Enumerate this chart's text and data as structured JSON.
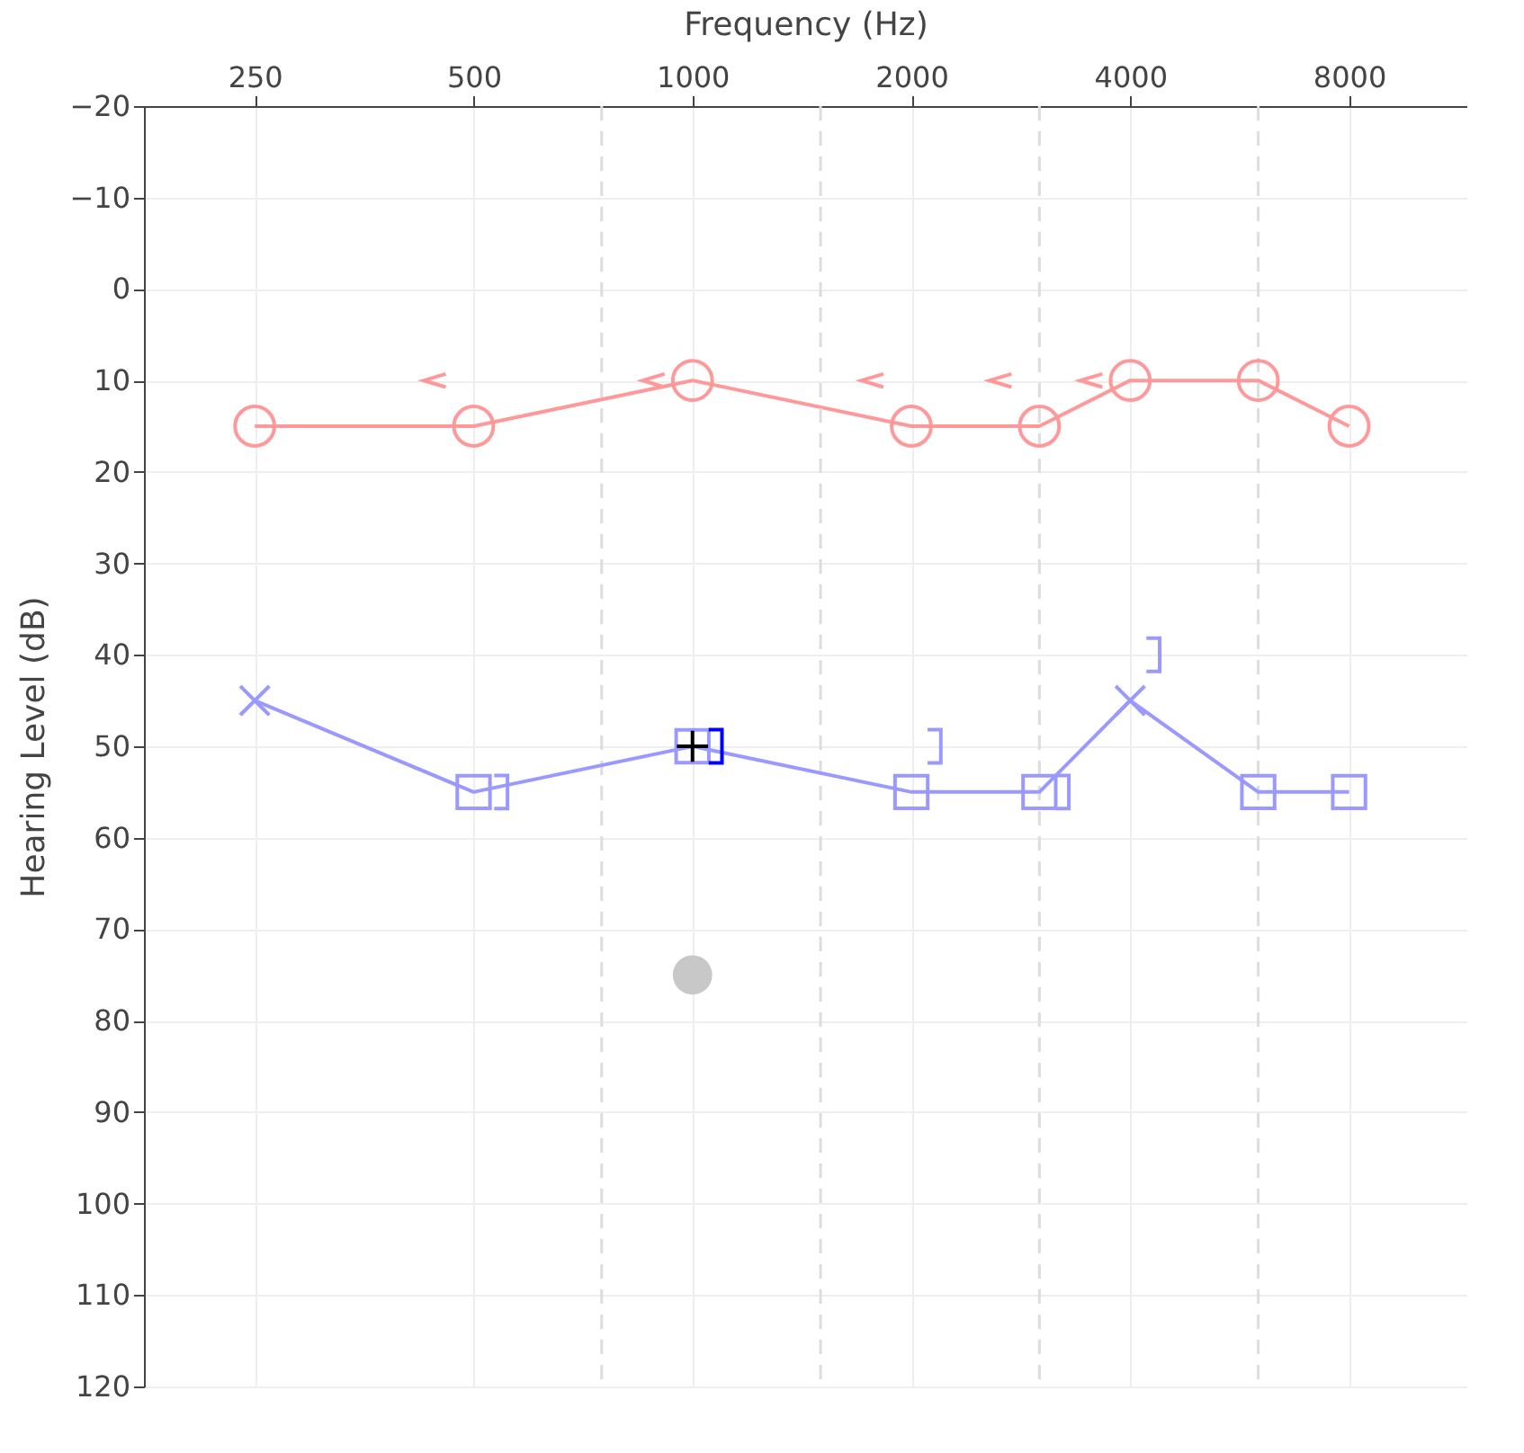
{
  "chart_data": {
    "type": "line",
    "xlabel": "Frequency (Hz)",
    "ylabel": "Hearing Level (dB)",
    "x": [
      250,
      500,
      1000,
      2000,
      3000,
      4000,
      6000,
      8000
    ],
    "xlim": [
      176,
      11600
    ],
    "xticks": [
      250,
      500,
      {
        "value": 1000,
        "label": "1000"
      },
      {
        "value": 2000,
        "label": "2000"
      },
      {
        "value": 4000,
        "label": "4000"
      },
      {
        "value": 8000,
        "label": "8000"
      }
    ],
    "ylim": [
      120,
      -20
    ],
    "yticks": [
      -20,
      -10,
      0,
      10,
      20,
      30,
      40,
      50,
      60,
      70,
      80,
      90,
      100,
      110,
      120
    ],
    "log": "x",
    "grid": true,
    "series": [
      {
        "color": "#ff9999",
        "marker": "circle",
        "values": [
          15,
          15,
          10,
          15,
          15,
          10,
          10,
          15
        ]
      },
      {
        "color": "#9999ff",
        "marker": "none",
        "values": [
          45,
          55,
          50,
          55,
          55,
          45,
          55,
          55
        ]
      },
      {
        "type": "scatter",
        "color": "#9999ff",
        "marker": "square",
        "values": [
          null,
          55,
          50,
          55,
          55,
          null,
          55,
          55
        ]
      },
      {
        "type": "scatter",
        "color": "#9999ff",
        "marker": "x",
        "values": [
          45,
          null,
          null,
          null,
          null,
          45,
          null,
          null
        ]
      },
      {
        "type": "scatter",
        "color": "#000000",
        "marker": "cross",
        "x": [
          1000
        ],
        "values": [
          50
        ]
      },
      {
        "type": "scatter",
        "color": "#c8c8c8",
        "marker": "circle",
        "x": [
          1000
        ],
        "values": [
          75
        ]
      },
      {
        "type": "scatter",
        "color": "#ff9999",
        "marker": "cross",
        "x": [
          442,
          884,
          1768,
          2652,
          3536
        ],
        "values": [
          10,
          10,
          10,
          10,
          10
        ]
      },
      {
        "type": "scatter",
        "colors": [
          "#9999ff",
          "#0000ff",
          "#9999ff",
          "#9999ff",
          "#9999ff"
        ],
        "marker": "cross",
        "x": [
          545,
          1075,
          2150,
          3225,
          4300
        ],
        "values": [
          55,
          50,
          50,
          55,
          40
        ]
      }
    ],
    "ref_lines": [
      {
        "axis": "x",
        "value": 750,
        "line_style": "dashed",
        "color": "#dddddd"
      },
      {
        "axis": "x",
        "value": 1500,
        "line_style": "dashed",
        "color": "#dddddd"
      },
      {
        "axis": "x",
        "value": 3000,
        "line_style": "dashed",
        "color": "#dddddd"
      },
      {
        "axis": "x",
        "value": 6000,
        "line_style": "dashed",
        "color": "#dddddd"
      }
    ]
  }
}
